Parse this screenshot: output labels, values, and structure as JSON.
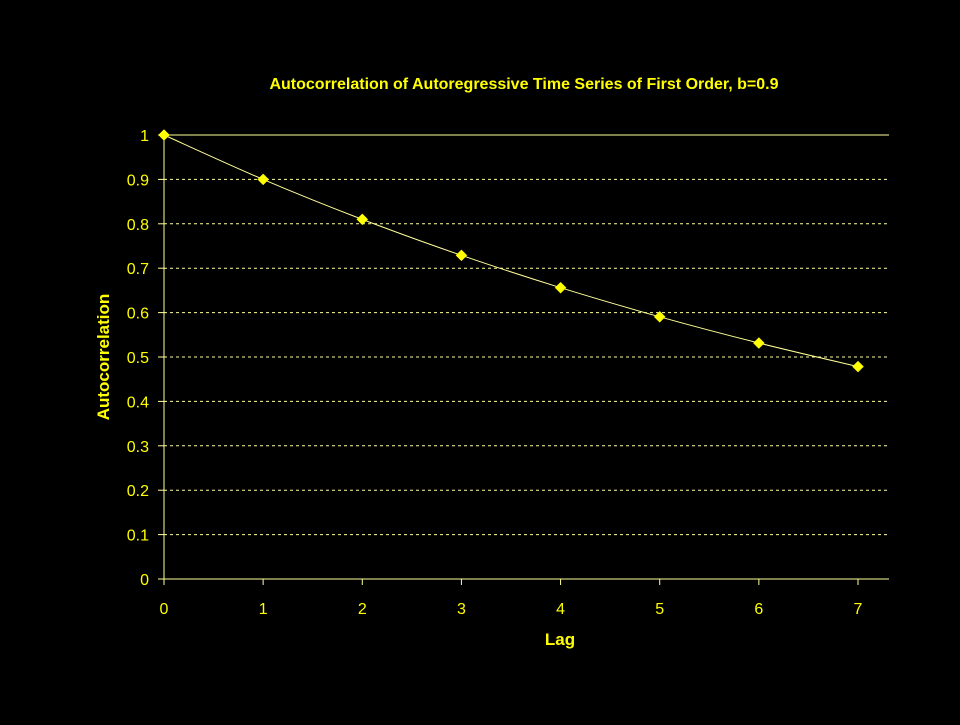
{
  "colors": {
    "background": "#000000",
    "text": "#FFFF00",
    "line": "#FFFF99",
    "grid": "#FFFF99",
    "axis": "#FFFF99",
    "marker": "#FFFF00"
  },
  "chart_data": {
    "type": "line",
    "title": "Autocorrelation of Autoregressive Time Series of First Order, b=0.9",
    "xlabel": "Lag",
    "ylabel": "Autocorrelation",
    "x": [
      0,
      1,
      2,
      3,
      4,
      5,
      6,
      7
    ],
    "series": [
      {
        "values": [
          1,
          0.9,
          0.81,
          0.729,
          0.6561,
          0.59049,
          0.531441,
          0.4782969
        ]
      }
    ],
    "xlim": [
      0,
      7
    ],
    "ylim": [
      0,
      1
    ],
    "x_ticks": [
      "0",
      "1",
      "2",
      "3",
      "4",
      "5",
      "6",
      "7"
    ],
    "y_ticks": [
      "0",
      "0.1",
      "0.2",
      "0.3",
      "0.4",
      "0.5",
      "0.6",
      "0.7",
      "0.8",
      "0.9",
      "1"
    ],
    "grid": "horizontal dashed",
    "marker": "diamond",
    "smooth": true,
    "legend": "none"
  }
}
